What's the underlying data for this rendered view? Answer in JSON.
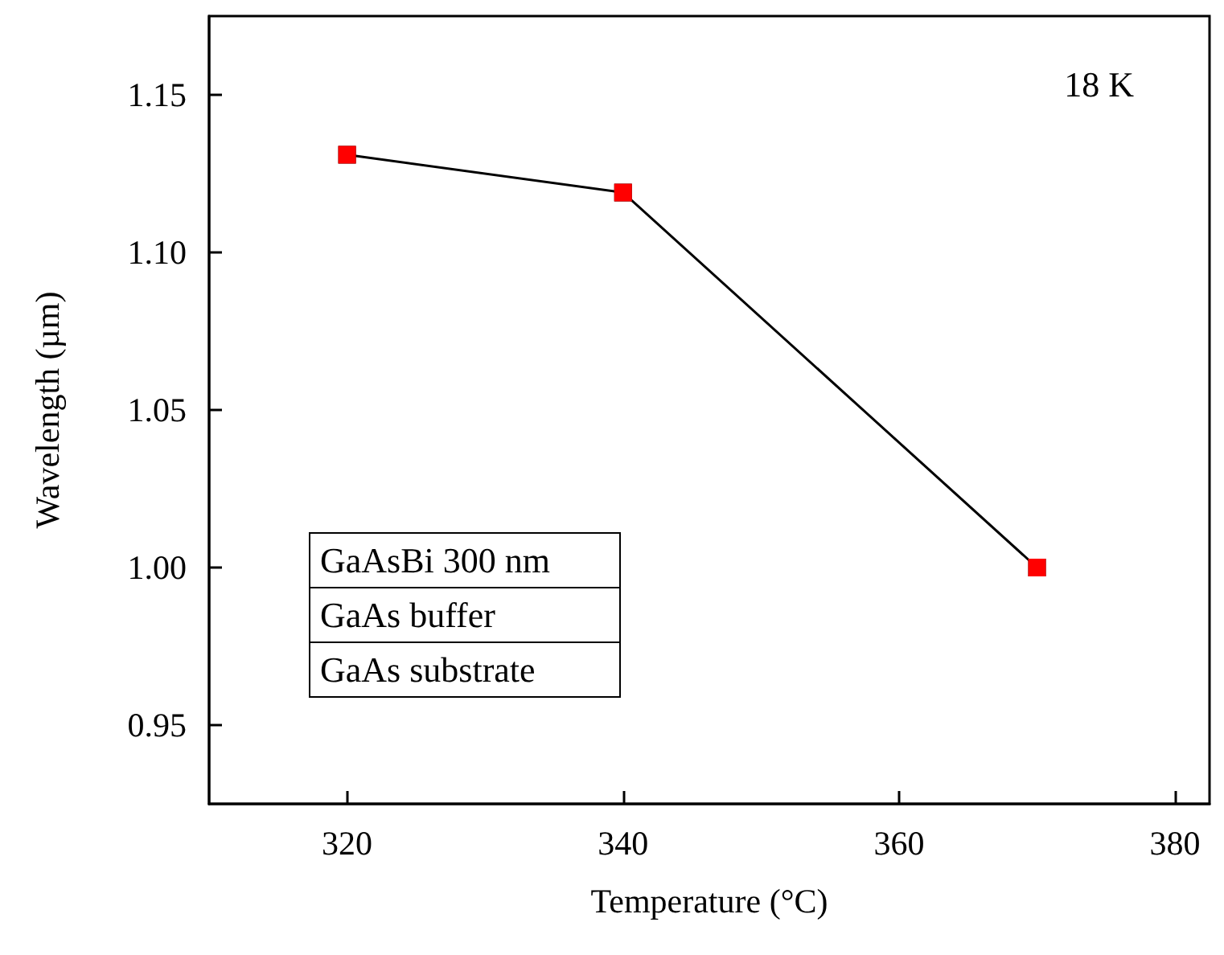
{
  "chart_data": {
    "type": "line",
    "xlabel": "Temperature (°C)",
    "ylabel": "Wavelength (µm)",
    "x": [
      320,
      340,
      370
    ],
    "series": [
      {
        "color": "#000000",
        "values": [
          1.131,
          1.119,
          1.0
        ]
      },
      {
        "type": "scatter",
        "color": "#ff0000",
        "values": [
          1.131,
          1.119,
          1.0
        ]
      }
    ],
    "marker": "square",
    "xlim": [
      310,
      382.5
    ],
    "xticks": [
      320,
      340,
      360,
      380
    ],
    "ylim": [
      0.925,
      1.175
    ],
    "yticks": [
      0.95,
      {
        "value": 1.0,
        "label": "1.00"
      },
      1.05,
      {
        "value": 1.1,
        "label": "1.10"
      },
      1.15
    ],
    "grid": false,
    "annotations": [
      "18 K",
      "GaAsBi 300 nm",
      "GaAs buffer",
      "GaAs substrate"
    ]
  }
}
